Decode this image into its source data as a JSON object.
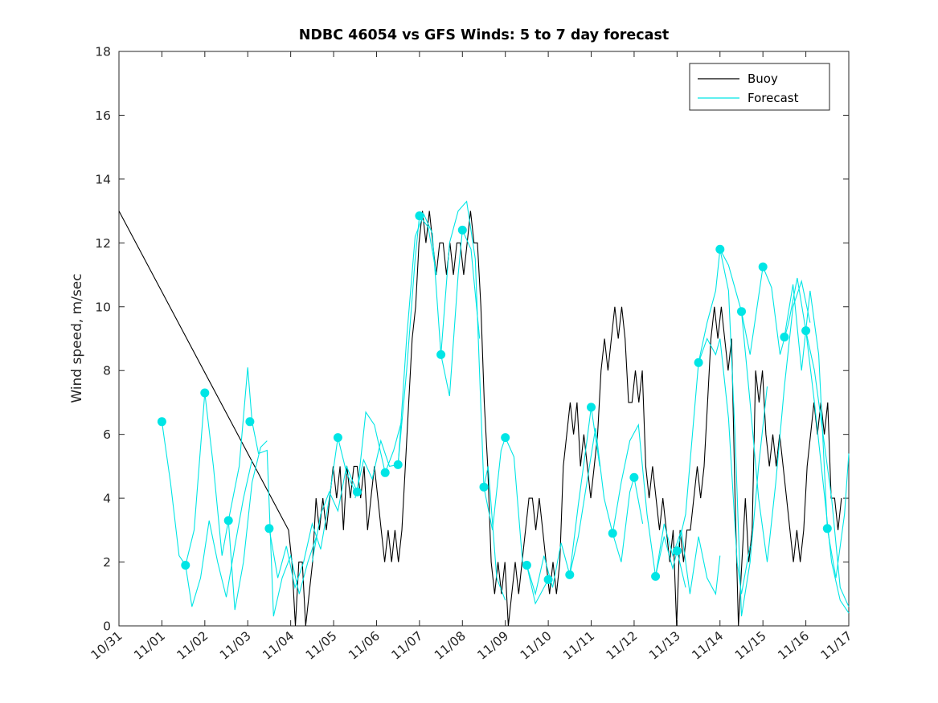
{
  "chart_data": {
    "type": "line",
    "title": "NDBC 46054 vs GFS Winds: 5 to 7 day forecast",
    "xlabel": "",
    "ylabel": "Wind speed, m/sec",
    "xlim": [
      0,
      17
    ],
    "ylim": [
      0,
      18
    ],
    "yticks": [
      0,
      2,
      4,
      6,
      8,
      10,
      12,
      14,
      16,
      18
    ],
    "xticks": [
      0,
      1,
      2,
      3,
      4,
      5,
      6,
      7,
      8,
      9,
      10,
      11,
      12,
      13,
      14,
      15,
      16,
      17
    ],
    "xtick_labels": [
      "10/31",
      "11/01",
      "11/02",
      "11/03",
      "11/04",
      "11/05",
      "11/06",
      "11/07",
      "11/08",
      "11/09",
      "11/10",
      "11/11",
      "11/12",
      "11/13",
      "11/14",
      "11/15",
      "11/16",
      "11/17"
    ],
    "x_unit": "days since 10/31",
    "grid": false,
    "legend_position": "northeast",
    "colors": {
      "buoy": "#000000",
      "forecast": "#00e5e5",
      "axis": "#262626"
    },
    "legend": [
      {
        "label": "Buoy",
        "series": "buoy"
      },
      {
        "label": "Forecast",
        "series": "forecast"
      }
    ],
    "buoy": {
      "name": "Buoy",
      "lead_segment": [
        [
          0,
          13
        ],
        [
          3.95,
          3
        ]
      ],
      "x_start": 3.95,
      "dx": 0.08,
      "y": [
        3,
        2,
        0,
        2,
        2,
        0,
        1,
        2,
        4,
        3,
        4,
        3,
        4,
        5,
        4,
        5,
        3,
        5,
        4,
        5,
        5,
        4,
        5,
        3,
        4,
        5,
        4,
        3,
        2,
        3,
        2,
        3,
        2,
        3,
        5,
        7,
        9,
        10,
        12,
        13,
        12,
        13,
        12,
        11,
        12,
        12,
        11,
        12,
        11,
        12,
        12,
        11,
        12,
        13,
        12,
        12,
        10,
        7,
        5,
        2,
        1,
        2,
        1,
        2,
        0,
        1,
        2,
        1,
        2,
        3,
        4,
        4,
        3,
        4,
        3,
        2,
        1,
        2,
        1,
        2,
        5,
        6,
        7,
        6,
        7,
        5,
        6,
        5,
        4,
        5,
        6,
        8,
        9,
        8,
        9,
        10,
        9,
        10,
        9,
        7,
        7,
        8,
        7,
        8,
        5,
        4,
        5,
        4,
        3,
        4,
        3,
        2,
        3,
        0,
        3,
        2,
        3,
        3,
        4,
        5,
        4,
        5,
        7,
        9,
        10,
        9,
        10,
        9,
        8,
        9,
        4,
        0,
        2,
        4,
        2,
        3,
        8,
        7,
        8,
        6,
        5,
        6,
        5,
        6,
        5,
        4,
        3,
        2,
        3,
        2,
        3,
        5,
        6,
        7,
        6,
        7,
        6,
        7,
        4,
        4,
        3,
        4
      ]
    },
    "forecast_traces": [
      [
        [
          1.0,
          6.4
        ],
        [
          1.2,
          4.5
        ],
        [
          1.4,
          2.2
        ],
        [
          1.55,
          1.9
        ],
        [
          1.7,
          0.6
        ],
        [
          1.9,
          1.5
        ],
        [
          2.1,
          3.3
        ],
        [
          2.3,
          2.0
        ],
        [
          2.5,
          0.9
        ],
        [
          2.7,
          2.5
        ],
        [
          2.9,
          4.0
        ],
        [
          3.1,
          5.2
        ]
      ],
      [
        [
          1.55,
          1.9
        ],
        [
          1.75,
          3.0
        ],
        [
          2.0,
          7.3
        ],
        [
          2.2,
          5.0
        ],
        [
          2.4,
          2.2
        ],
        [
          2.55,
          3.3
        ],
        [
          2.7,
          0.5
        ],
        [
          2.9,
          2.0
        ],
        [
          3.1,
          4.5
        ],
        [
          3.3,
          5.6
        ],
        [
          3.45,
          5.8
        ]
      ],
      [
        [
          2.55,
          3.3
        ],
        [
          2.8,
          5.0
        ],
        [
          3.0,
          8.1
        ],
        [
          3.1,
          6.4
        ],
        [
          3.25,
          5.4
        ],
        [
          3.45,
          5.5
        ],
        [
          3.6,
          0.3
        ],
        [
          3.8,
          1.5
        ],
        [
          4.0,
          2.2
        ],
        [
          4.2,
          1.0
        ],
        [
          4.4,
          2.0
        ],
        [
          4.6,
          2.8
        ]
      ],
      [
        [
          3.5,
          3.05
        ],
        [
          3.7,
          1.5
        ],
        [
          3.9,
          2.5
        ],
        [
          4.1,
          1.2
        ],
        [
          4.3,
          2.0
        ],
        [
          4.5,
          3.2
        ],
        [
          4.7,
          2.4
        ],
        [
          4.9,
          4.0
        ],
        [
          5.1,
          5.9
        ],
        [
          5.3,
          4.8
        ],
        [
          5.5,
          4.2
        ]
      ],
      [
        [
          4.5,
          2.0
        ],
        [
          4.7,
          3.5
        ],
        [
          4.9,
          4.2
        ],
        [
          5.1,
          3.6
        ],
        [
          5.3,
          5.0
        ],
        [
          5.55,
          4.2
        ],
        [
          5.75,
          6.7
        ],
        [
          5.95,
          6.3
        ],
        [
          6.2,
          4.8
        ],
        [
          6.4,
          5.5
        ],
        [
          6.6,
          6.5
        ]
      ],
      [
        [
          5.5,
          4.0
        ],
        [
          5.7,
          5.2
        ],
        [
          5.9,
          4.6
        ],
        [
          6.1,
          5.8
        ],
        [
          6.3,
          5.0
        ],
        [
          6.5,
          5.05
        ],
        [
          6.7,
          8.0
        ],
        [
          6.9,
          11.5
        ],
        [
          7.0,
          12.85
        ],
        [
          7.2,
          12.5
        ],
        [
          7.4,
          11.0
        ]
      ],
      [
        [
          6.5,
          5.0
        ],
        [
          6.7,
          9.0
        ],
        [
          6.9,
          12.2
        ],
        [
          7.1,
          12.9
        ],
        [
          7.3,
          12.3
        ],
        [
          7.5,
          8.5
        ],
        [
          7.7,
          7.2
        ],
        [
          7.9,
          11.0
        ],
        [
          8.0,
          12.4
        ],
        [
          8.2,
          11.8
        ],
        [
          8.4,
          9.0
        ]
      ],
      [
        [
          7.5,
          8.5
        ],
        [
          7.7,
          12.0
        ],
        [
          7.9,
          13.0
        ],
        [
          8.1,
          13.3
        ],
        [
          8.3,
          11.5
        ],
        [
          8.5,
          4.35
        ],
        [
          8.6,
          5.0
        ],
        [
          8.8,
          1.5
        ],
        [
          9.0,
          0.8
        ]
      ],
      [
        [
          8.5,
          4.35
        ],
        [
          8.7,
          3.0
        ],
        [
          8.9,
          5.5
        ],
        [
          9.0,
          5.9
        ],
        [
          9.2,
          5.3
        ],
        [
          9.4,
          2.0
        ],
        [
          9.5,
          1.9
        ],
        [
          9.7,
          0.7
        ],
        [
          9.9,
          1.2
        ],
        [
          10.0,
          1.45
        ]
      ],
      [
        [
          9.5,
          1.9
        ],
        [
          9.7,
          1.0
        ],
        [
          9.9,
          2.2
        ],
        [
          10.1,
          1.2
        ],
        [
          10.3,
          2.6
        ],
        [
          10.5,
          1.6
        ],
        [
          10.7,
          3.8
        ],
        [
          10.9,
          5.8
        ],
        [
          11.0,
          6.85
        ],
        [
          11.2,
          5.0
        ]
      ],
      [
        [
          10.5,
          1.6
        ],
        [
          10.7,
          2.8
        ],
        [
          10.9,
          4.5
        ],
        [
          11.1,
          6.2
        ],
        [
          11.3,
          4.0
        ],
        [
          11.5,
          2.9
        ],
        [
          11.7,
          2.0
        ],
        [
          11.9,
          4.2
        ],
        [
          12.0,
          4.65
        ],
        [
          12.2,
          3.2
        ]
      ],
      [
        [
          11.5,
          2.9
        ],
        [
          11.7,
          4.5
        ],
        [
          11.9,
          5.8
        ],
        [
          12.1,
          6.3
        ],
        [
          12.3,
          3.5
        ],
        [
          12.5,
          1.55
        ],
        [
          12.7,
          2.8
        ],
        [
          12.9,
          1.8
        ],
        [
          13.0,
          2.35
        ],
        [
          13.2,
          1.2
        ]
      ],
      [
        [
          12.5,
          1.55
        ],
        [
          12.7,
          3.2
        ],
        [
          12.9,
          2.2
        ],
        [
          13.1,
          3.0
        ],
        [
          13.3,
          1.0
        ],
        [
          13.5,
          2.8
        ],
        [
          13.7,
          1.5
        ],
        [
          13.9,
          1.0
        ],
        [
          14.0,
          2.2
        ]
      ],
      [
        [
          13.0,
          2.35
        ],
        [
          13.2,
          3.5
        ],
        [
          13.5,
          8.25
        ],
        [
          13.7,
          9.0
        ],
        [
          13.9,
          8.5
        ],
        [
          14.0,
          9.0
        ],
        [
          14.2,
          6.5
        ],
        [
          14.4,
          2.0
        ],
        [
          14.5,
          1.0
        ],
        [
          14.7,
          2.5
        ]
      ],
      [
        [
          13.5,
          8.25
        ],
        [
          13.7,
          9.5
        ],
        [
          13.9,
          10.5
        ],
        [
          14.0,
          11.8
        ],
        [
          14.2,
          10.5
        ],
        [
          14.35,
          6.0
        ],
        [
          14.5,
          0.3
        ],
        [
          14.7,
          2.0
        ],
        [
          14.9,
          5.0
        ],
        [
          15.1,
          7.5
        ]
      ],
      [
        [
          14.0,
          11.8
        ],
        [
          14.2,
          11.3
        ],
        [
          14.5,
          9.85
        ],
        [
          14.7,
          7.0
        ],
        [
          14.9,
          4.0
        ],
        [
          15.1,
          2.0
        ],
        [
          15.3,
          4.5
        ],
        [
          15.5,
          7.5
        ],
        [
          15.7,
          10.0
        ],
        [
          15.9,
          10.8
        ],
        [
          16.1,
          9.5
        ]
      ],
      [
        [
          14.5,
          9.85
        ],
        [
          14.7,
          8.5
        ],
        [
          15.0,
          11.25
        ],
        [
          15.2,
          10.6
        ],
        [
          15.4,
          8.5
        ],
        [
          15.6,
          9.5
        ],
        [
          15.8,
          10.9
        ],
        [
          16.0,
          9.25
        ],
        [
          16.2,
          7.0
        ],
        [
          16.4,
          4.5
        ],
        [
          16.6,
          2.0
        ],
        [
          16.8,
          0.8
        ],
        [
          17.0,
          0.4
        ]
      ],
      [
        [
          15.5,
          9.05
        ],
        [
          15.7,
          10.7
        ],
        [
          15.9,
          8.0
        ],
        [
          16.1,
          10.5
        ],
        [
          16.3,
          8.5
        ],
        [
          16.5,
          3.05
        ],
        [
          16.7,
          1.5
        ],
        [
          16.9,
          3.5
        ],
        [
          17.0,
          5.4
        ]
      ],
      [
        [
          16.0,
          9.25
        ],
        [
          16.2,
          8.0
        ],
        [
          16.4,
          6.0
        ],
        [
          16.6,
          4.0
        ],
        [
          16.8,
          1.2
        ],
        [
          17.0,
          0.6
        ]
      ]
    ],
    "forecast_markers": [
      [
        1.0,
        6.4
      ],
      [
        1.55,
        1.9
      ],
      [
        2.0,
        7.3
      ],
      [
        2.55,
        3.3
      ],
      [
        3.05,
        6.4
      ],
      [
        3.5,
        3.05
      ],
      [
        5.1,
        5.9
      ],
      [
        5.55,
        4.2
      ],
      [
        6.2,
        4.8
      ],
      [
        6.5,
        5.05
      ],
      [
        7.0,
        12.85
      ],
      [
        7.5,
        8.5
      ],
      [
        8.0,
        12.4
      ],
      [
        8.5,
        4.35
      ],
      [
        9.0,
        5.9
      ],
      [
        9.5,
        1.9
      ],
      [
        10.0,
        1.45
      ],
      [
        10.5,
        1.6
      ],
      [
        11.0,
        6.85
      ],
      [
        11.5,
        2.9
      ],
      [
        12.0,
        4.65
      ],
      [
        12.5,
        1.55
      ],
      [
        13.0,
        2.35
      ],
      [
        13.5,
        8.25
      ],
      [
        14.0,
        11.8
      ],
      [
        14.5,
        9.85
      ],
      [
        15.0,
        11.25
      ],
      [
        15.5,
        9.05
      ],
      [
        16.0,
        9.25
      ],
      [
        16.5,
        3.05
      ]
    ]
  }
}
